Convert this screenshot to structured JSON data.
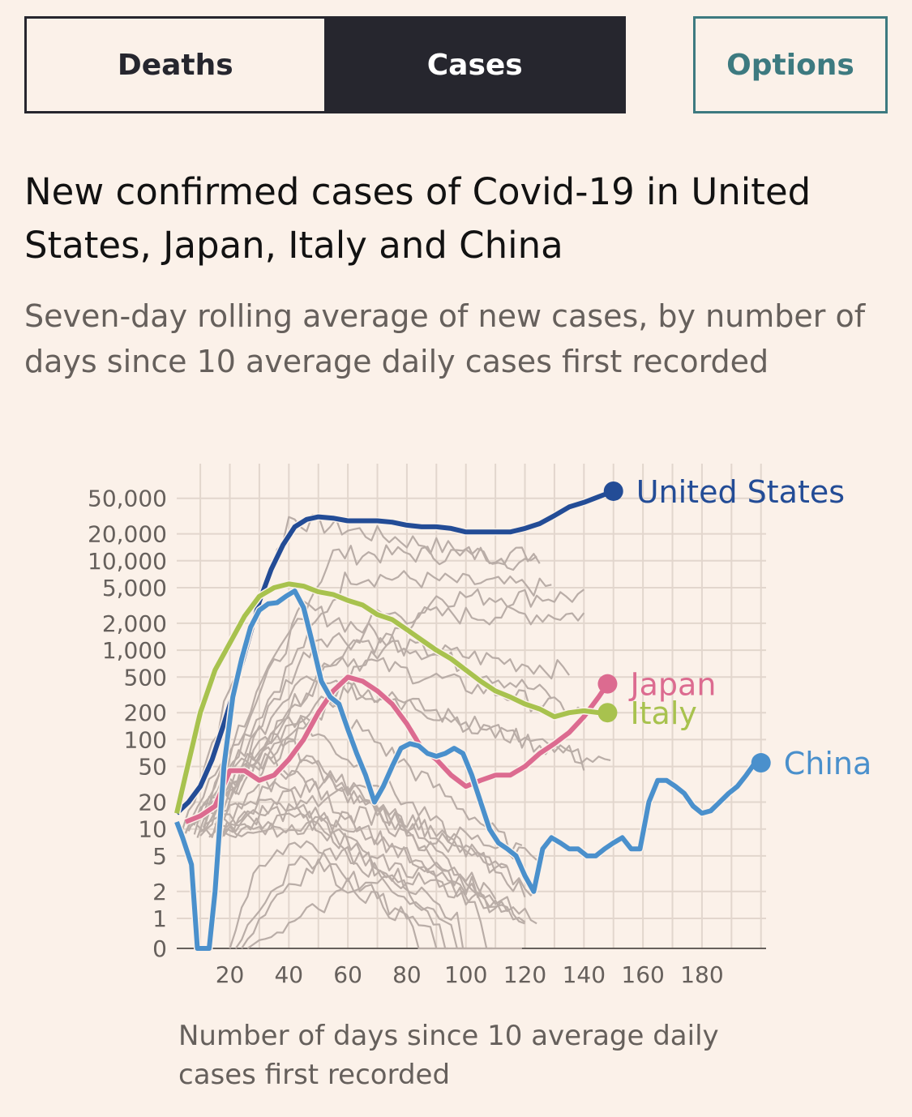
{
  "tabs": {
    "deaths_label": "Deaths",
    "cases_label": "Cases",
    "active": "Cases"
  },
  "options_label": "Options",
  "colors": {
    "background": "#fbf1e9",
    "us": "#234c96",
    "japan": "#dc6b90",
    "italy": "#a8c24e",
    "china": "#4a90cc",
    "others": "#b9ada7",
    "grid": "#e2d6cd",
    "axis": "#66605c",
    "options": "#3d7a80"
  },
  "chart_data": {
    "type": "line",
    "title": "New confirmed cases of Covid-19 in United States, Japan, Italy and China",
    "subtitle": "Seven-day rolling average of new cases, by number of days since 10 average daily cases first recorded",
    "xlabel": "Number of days since 10 average daily cases first recorded",
    "ylabel": "",
    "y_scale": "log",
    "xlim": [
      2,
      202
    ],
    "ylim": [
      0,
      60000
    ],
    "x_ticks": [
      20,
      40,
      60,
      80,
      100,
      120,
      140,
      160,
      180
    ],
    "y_ticks": [
      0,
      1,
      2,
      5,
      10,
      20,
      50,
      100,
      200,
      500,
      1000,
      2000,
      5000,
      10000,
      20000,
      50000
    ],
    "y_tick_labels": [
      "0",
      "1",
      "2",
      "5",
      "10",
      "20",
      "50",
      "100",
      "200",
      "500",
      "1,000",
      "2,000",
      "5,000",
      "10,000",
      "20,000",
      "50,000"
    ],
    "grid": true,
    "series": [
      {
        "name": "United States",
        "color_key": "us",
        "x": [
          2,
          6,
          10,
          14,
          18,
          22,
          26,
          30,
          34,
          38,
          42,
          46,
          50,
          55,
          60,
          65,
          70,
          75,
          80,
          85,
          90,
          95,
          100,
          105,
          110,
          115,
          120,
          125,
          130,
          135,
          140,
          145,
          150
        ],
        "y": [
          15,
          20,
          30,
          60,
          150,
          400,
          1200,
          3500,
          8000,
          15000,
          24000,
          29000,
          31000,
          30000,
          28000,
          28000,
          28000,
          27000,
          25000,
          24000,
          24000,
          23000,
          21000,
          21000,
          21000,
          21000,
          23000,
          26000,
          32000,
          40000,
          45000,
          52000,
          60000
        ]
      },
      {
        "name": "Japan",
        "color_key": "japan",
        "x": [
          5,
          10,
          15,
          20,
          25,
          30,
          35,
          40,
          45,
          50,
          55,
          60,
          65,
          70,
          75,
          80,
          85,
          90,
          95,
          100,
          105,
          110,
          115,
          120,
          125,
          130,
          135,
          140,
          145,
          148
        ],
        "y": [
          12,
          14,
          18,
          45,
          45,
          35,
          40,
          60,
          100,
          200,
          350,
          500,
          450,
          350,
          250,
          150,
          80,
          60,
          40,
          30,
          35,
          40,
          40,
          50,
          70,
          90,
          120,
          180,
          300,
          420
        ]
      },
      {
        "name": "Italy",
        "color_key": "italy",
        "x": [
          2,
          5,
          10,
          15,
          20,
          25,
          30,
          35,
          40,
          45,
          50,
          55,
          60,
          65,
          70,
          75,
          80,
          85,
          90,
          95,
          100,
          105,
          110,
          115,
          120,
          125,
          130,
          135,
          140,
          145,
          148
        ],
        "y": [
          15,
          40,
          200,
          600,
          1200,
          2400,
          4000,
          5000,
          5500,
          5200,
          4500,
          4200,
          3600,
          3200,
          2500,
          2200,
          1700,
          1300,
          1000,
          800,
          600,
          450,
          350,
          300,
          250,
          220,
          180,
          200,
          210,
          200,
          200
        ]
      },
      {
        "name": "China",
        "color_key": "china",
        "x": [
          2,
          4,
          7,
          9,
          11,
          13,
          15,
          18,
          21,
          24,
          27,
          30,
          33,
          36,
          39,
          42,
          45,
          48,
          51,
          54,
          57,
          60,
          63,
          66,
          69,
          72,
          75,
          78,
          81,
          84,
          87,
          90,
          93,
          96,
          99,
          102,
          105,
          108,
          111,
          114,
          117,
          120,
          123,
          126,
          129,
          132,
          135,
          138,
          141,
          144,
          147,
          150,
          153,
          156,
          159,
          162,
          165,
          168,
          171,
          174,
          177,
          180,
          183,
          186,
          189,
          192,
          195,
          198,
          200
        ],
        "y": [
          12,
          8,
          4,
          0,
          0,
          0,
          2,
          50,
          300,
          800,
          1800,
          2800,
          3300,
          3400,
          4000,
          4600,
          3000,
          1200,
          450,
          300,
          250,
          130,
          70,
          40,
          20,
          30,
          50,
          80,
          90,
          85,
          70,
          65,
          70,
          80,
          70,
          40,
          20,
          10,
          7,
          6,
          5,
          3,
          2,
          6,
          8,
          7,
          6,
          6,
          5,
          5,
          6,
          7,
          8,
          6,
          6,
          20,
          35,
          35,
          30,
          25,
          18,
          15,
          16,
          20,
          25,
          30,
          40,
          55,
          55
        ]
      }
    ],
    "other_countries": {
      "color_key": "others",
      "count_shown": 26,
      "samples": [
        {
          "x_start": 4,
          "x_end": 125,
          "peak_x": 40,
          "peak_y": 30000,
          "end_y": 9000
        },
        {
          "x_start": 5,
          "x_end": 125,
          "peak_x": 55,
          "peak_y": 12000,
          "end_y": 12000
        },
        {
          "x_start": 5,
          "x_end": 130,
          "peak_x": 60,
          "peak_y": 7000,
          "end_y": 5000
        },
        {
          "x_start": 6,
          "x_end": 140,
          "peak_x": 90,
          "peak_y": 4000,
          "end_y": 4000
        },
        {
          "x_start": 6,
          "x_end": 140,
          "peak_x": 70,
          "peak_y": 2500,
          "end_y": 2500
        },
        {
          "x_start": 7,
          "x_end": 130,
          "peak_x": 45,
          "peak_y": 3000,
          "end_y": 300
        },
        {
          "x_start": 7,
          "x_end": 135,
          "peak_x": 50,
          "peak_y": 1500,
          "end_y": 600
        },
        {
          "x_start": 8,
          "x_end": 140,
          "peak_x": 55,
          "peak_y": 900,
          "end_y": 200
        },
        {
          "x_start": 8,
          "x_end": 140,
          "peak_x": 45,
          "peak_y": 600,
          "end_y": 60
        },
        {
          "x_start": 9,
          "x_end": 150,
          "peak_x": 60,
          "peak_y": 400,
          "end_y": 50
        },
        {
          "x_start": 9,
          "x_end": 120,
          "peak_x": 50,
          "peak_y": 300,
          "end_y": 5
        },
        {
          "x_start": 10,
          "x_end": 120,
          "peak_x": 40,
          "peak_y": 200,
          "end_y": 2
        },
        {
          "x_start": 10,
          "x_end": 115,
          "peak_x": 35,
          "peak_y": 120,
          "end_y": 1
        },
        {
          "x_start": 11,
          "x_end": 120,
          "peak_x": 30,
          "peak_y": 80,
          "end_y": 0
        },
        {
          "x_start": 12,
          "x_end": 115,
          "peak_x": 45,
          "peak_y": 60,
          "end_y": 3
        },
        {
          "x_start": 12,
          "x_end": 120,
          "peak_x": 55,
          "peak_y": 40,
          "end_y": 1
        },
        {
          "x_start": 13,
          "x_end": 110,
          "peak_x": 35,
          "peak_y": 30,
          "end_y": 0
        },
        {
          "x_start": 14,
          "x_end": 125,
          "peak_x": 60,
          "peak_y": 25,
          "end_y": 2
        },
        {
          "x_start": 15,
          "x_end": 100,
          "peak_x": 40,
          "peak_y": 20,
          "end_y": 0
        },
        {
          "x_start": 16,
          "x_end": 125,
          "peak_x": 70,
          "peak_y": 15,
          "end_y": 5
        },
        {
          "x_start": 17,
          "x_end": 105,
          "peak_x": 50,
          "peak_y": 12,
          "end_y": 0
        },
        {
          "x_start": 18,
          "x_end": 120,
          "peak_x": 65,
          "peak_y": 10,
          "end_y": 1
        },
        {
          "x_start": 20,
          "x_end": 90,
          "peak_x": 45,
          "peak_y": 8,
          "end_y": 0
        },
        {
          "x_start": 22,
          "x_end": 110,
          "peak_x": 55,
          "peak_y": 6,
          "end_y": 2
        },
        {
          "x_start": 24,
          "x_end": 95,
          "peak_x": 50,
          "peak_y": 4,
          "end_y": 0
        },
        {
          "x_start": 26,
          "x_end": 125,
          "peak_x": 80,
          "peak_y": 3,
          "end_y": 1
        }
      ]
    }
  }
}
